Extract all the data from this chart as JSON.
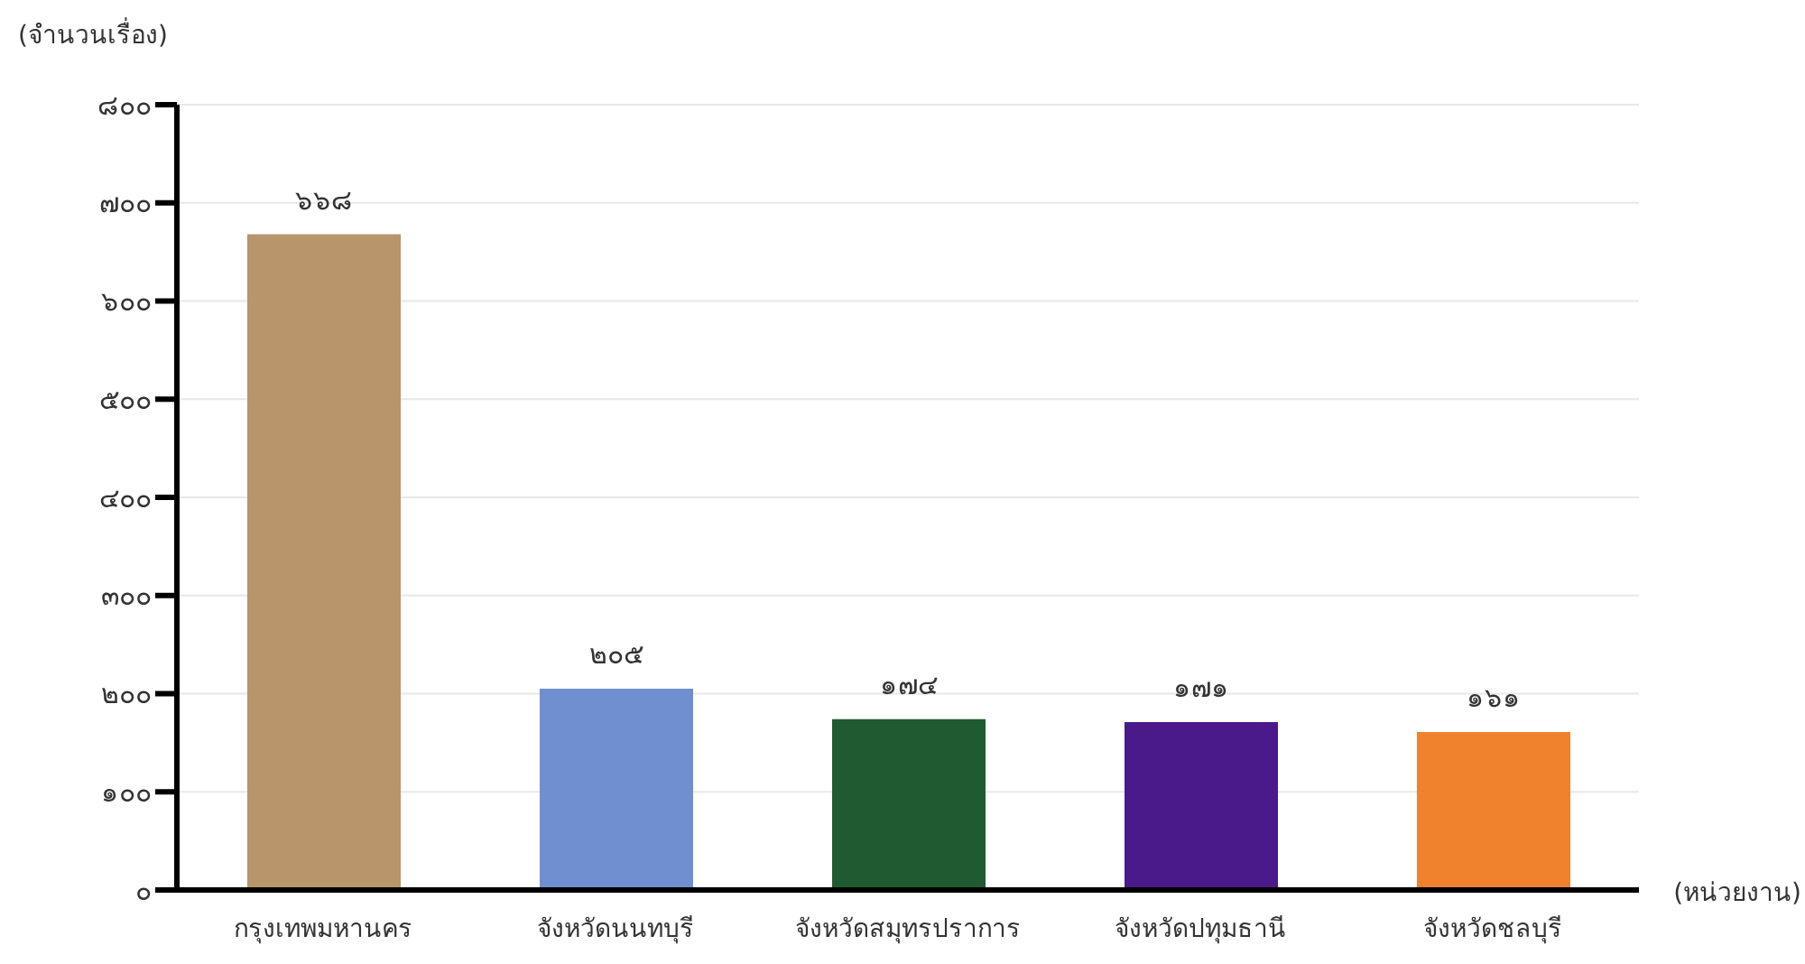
{
  "chart_data": {
    "type": "bar",
    "ylabel": "(จำนวนเรื่อง)",
    "xlabel": "(หน่วยงาน)",
    "categories": [
      "กรุงเทพมหานคร",
      "จังหวัดนนทบุรี",
      "จังหวัดสมุทรปราการ",
      "จังหวัดปทุมธานี",
      "จังหวัดชลบุรี"
    ],
    "values": [
      668,
      205,
      174,
      171,
      161
    ],
    "colors": [
      "#b8956a",
      "#6f8fd0",
      "#1f5a30",
      "#4a1a8a",
      "#f0822e"
    ],
    "value_labels": [
      "๖๖๘",
      "๒๐๕",
      "๑๗๔",
      "๑๗๑",
      "๑๖๑"
    ],
    "ylim": [
      0,
      800
    ],
    "yticks": [
      {
        "value": 0,
        "label": "๐"
      },
      {
        "value": 100,
        "label": "๑๐๐"
      },
      {
        "value": 200,
        "label": "๒๐๐"
      },
      {
        "value": 300,
        "label": "๓๐๐"
      },
      {
        "value": 400,
        "label": "๔๐๐"
      },
      {
        "value": 500,
        "label": "๕๐๐"
      },
      {
        "value": 600,
        "label": "๖๐๐"
      },
      {
        "value": 700,
        "label": "๗๐๐"
      },
      {
        "value": 800,
        "label": "๘๐๐"
      }
    ],
    "grid": "y",
    "legend": false
  }
}
